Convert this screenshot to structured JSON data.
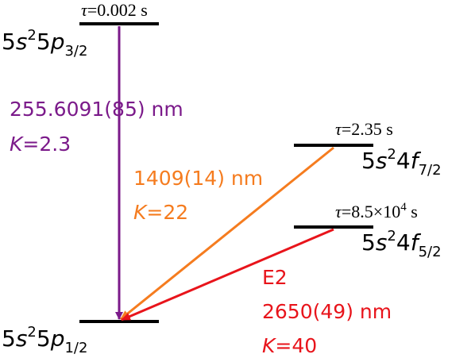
{
  "levels": [
    {
      "lifetime": [
        "τ",
        "=0.002 s"
      ],
      "config": [
        "5",
        "s",
        "2",
        "5",
        "p",
        "3/2"
      ]
    },
    {
      "lifetime": [
        "τ",
        "=2.35 s"
      ],
      "config": [
        "5",
        "s",
        "2",
        "4",
        "f",
        "7/2"
      ]
    },
    {
      "lifetime": [
        "τ",
        "=8.5×10",
        "4",
        " s"
      ],
      "config": [
        "5",
        "s",
        "2",
        "4",
        "f",
        "5/2"
      ]
    },
    {
      "config": [
        "5",
        "s",
        "2",
        "5",
        "p",
        "1/2"
      ]
    }
  ],
  "transitions": [
    {
      "wavelength": "255.6091(85) nm",
      "k_symbol": "K",
      "k_value": "=2.3"
    },
    {
      "wavelength": "1409(14) nm",
      "k_symbol": "K",
      "k_value": "=22"
    },
    {
      "type": "E2",
      "wavelength": "2650(49) nm",
      "k_symbol": "K",
      "k_value": "=40"
    }
  ]
}
